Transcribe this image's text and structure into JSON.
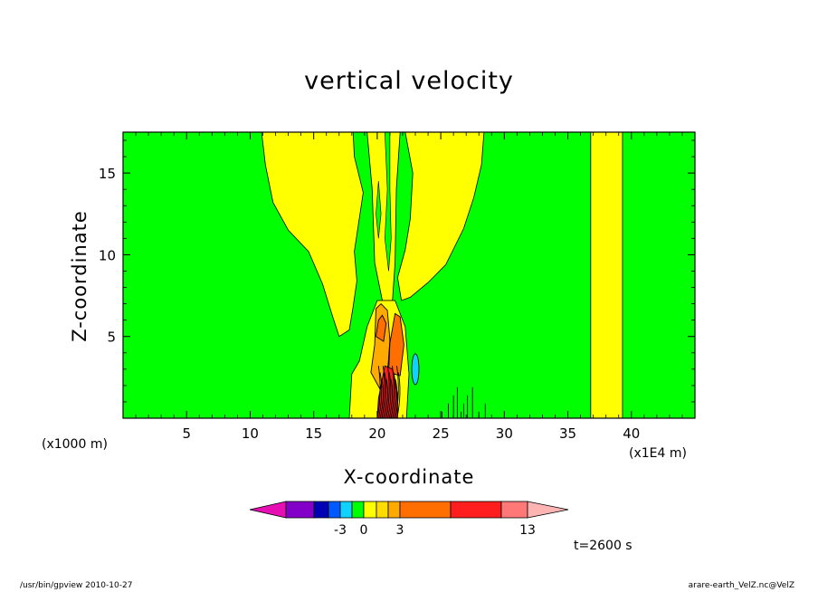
{
  "chart_data": {
    "type": "contour",
    "title": "vertical velocity",
    "xlabel": "X-coordinate",
    "ylabel": "Z-coordinate",
    "x_unit_left": "(x1000 m)",
    "x_unit_right": "(x1E4 m)",
    "xlim": [
      0,
      45
    ],
    "ylim": [
      0,
      17.5
    ],
    "xticks": [
      5,
      10,
      15,
      20,
      25,
      30,
      35,
      40
    ],
    "yticks": [
      5,
      10,
      15
    ],
    "time_label": "t=2600 s",
    "colorbar": {
      "colors": [
        "#e60fb4",
        "#8200c8",
        "#0000b4",
        "#005aff",
        "#0fd2ff",
        "#00ff00",
        "#ffff00",
        "#ffdc00",
        "#ffaa00",
        "#ff6e00",
        "#ff1e1e",
        "#ff7878",
        "#ffb4b4"
      ],
      "tick_labels": [
        "-3",
        "0",
        "3",
        "13"
      ]
    },
    "regions": {
      "background_color": "#00ff00",
      "plume_color": "#ffff00",
      "band_color": "#ffff00",
      "core_colors": [
        "#ffaa00",
        "#ff6e00",
        "#ff1e1e",
        "#0fd2ff"
      ]
    }
  },
  "footer": {
    "left": "/usr/bin/gpview   2010-10-27",
    "right": "arare-earth_VelZ.nc@VelZ"
  }
}
